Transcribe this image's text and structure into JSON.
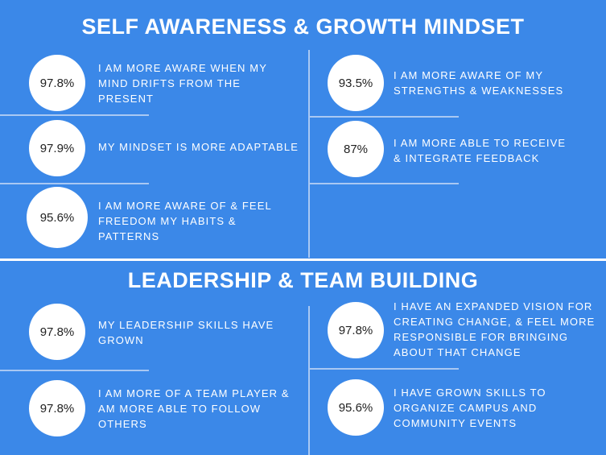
{
  "colors": {
    "background": "#3b88e8",
    "circle": "#ffffff",
    "divider": "#a9c8f3"
  },
  "sections": [
    {
      "title": "SELF AWARENESS & GROWTH MINDSET",
      "items": [
        {
          "value": "97.8%",
          "text": "I AM MORE AWARE WHEN MY MIND DRIFTS FROM THE PRESENT"
        },
        {
          "value": "97.9%",
          "text": "MY MINDSET IS MORE ADAPTABLE"
        },
        {
          "value": "95.6%",
          "text": "I AM MORE AWARE OF & FEEL FREEDOM MY HABITS & PATTERNS"
        },
        {
          "value": "93.5%",
          "text": "I AM MORE AWARE OF MY STRENGTHS & WEAKNESSES"
        },
        {
          "value": "87%",
          "text": "I AM MORE ABLE TO RECEIVE & INTEGRATE FEEDBACK"
        }
      ]
    },
    {
      "title": "LEADERSHIP & TEAM BUILDING",
      "items": [
        {
          "value": "97.8%",
          "text": "MY LEADERSHIP SKILLS HAVE GROWN"
        },
        {
          "value": "97.8%",
          "text": "I AM MORE OF A TEAM PLAYER & AM MORE ABLE TO FOLLOW OTHERS"
        },
        {
          "value": "97.8%",
          "text": "I HAVE AN EXPANDED VISION FOR CREATING CHANGE, & FEEL MORE RESPONSIBLE  FOR BRINGING ABOUT THAT CHANGE"
        },
        {
          "value": "95.6%",
          "text": "I HAVE GROWN SKILLS TO ORGANIZE CAMPUS AND COMMUNITY EVENTS"
        }
      ]
    }
  ]
}
